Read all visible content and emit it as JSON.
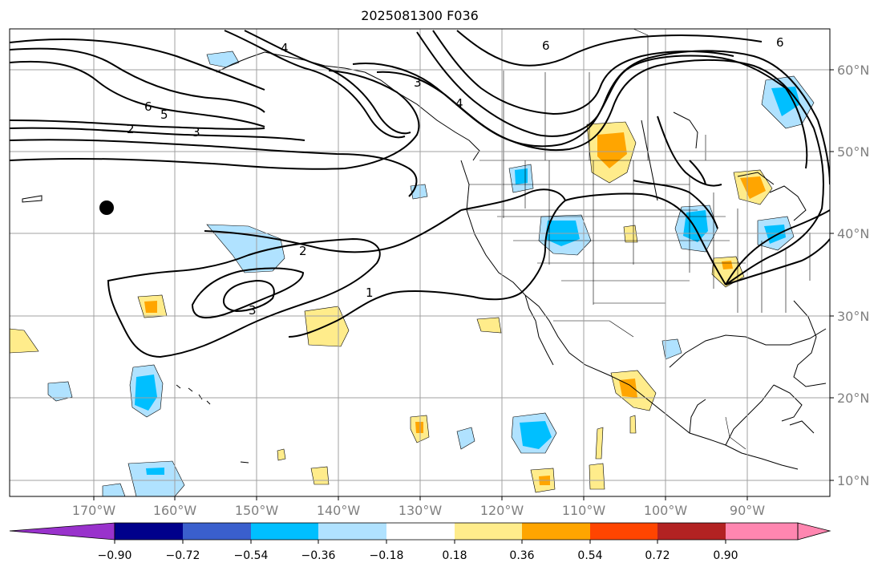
{
  "title": "2025081300 F036",
  "lon_labels": [
    "170°W",
    "160°W",
    "150°W",
    "140°W",
    "130°W",
    "120°W",
    "110°W",
    "100°W",
    "90°W"
  ],
  "lat_labels": [
    "60°N",
    "50°N",
    "40°N",
    "30°N",
    "20°N",
    "10°N"
  ],
  "colorbar": {
    "ticks": [
      "−0.90",
      "−0.72",
      "−0.54",
      "−0.36",
      "−0.18",
      "0.18",
      "0.36",
      "0.54",
      "0.72",
      "0.90"
    ],
    "colors": [
      "#9932cc",
      "#00008b",
      "#3a5fcd",
      "#00bfff",
      "#b0e2ff",
      "#ffffff",
      "#ffec8b",
      "#ffa500",
      "#ff4500",
      "#b22222",
      "#ff86b0"
    ]
  },
  "contour_labels": [
    "6",
    "5",
    "2",
    "3",
    "4",
    "3",
    "4",
    "6",
    "6",
    "2",
    "3",
    "1"
  ],
  "colors": {
    "contour": "#000000",
    "land_line": "#000000",
    "grid": "#a0a0a0"
  }
}
